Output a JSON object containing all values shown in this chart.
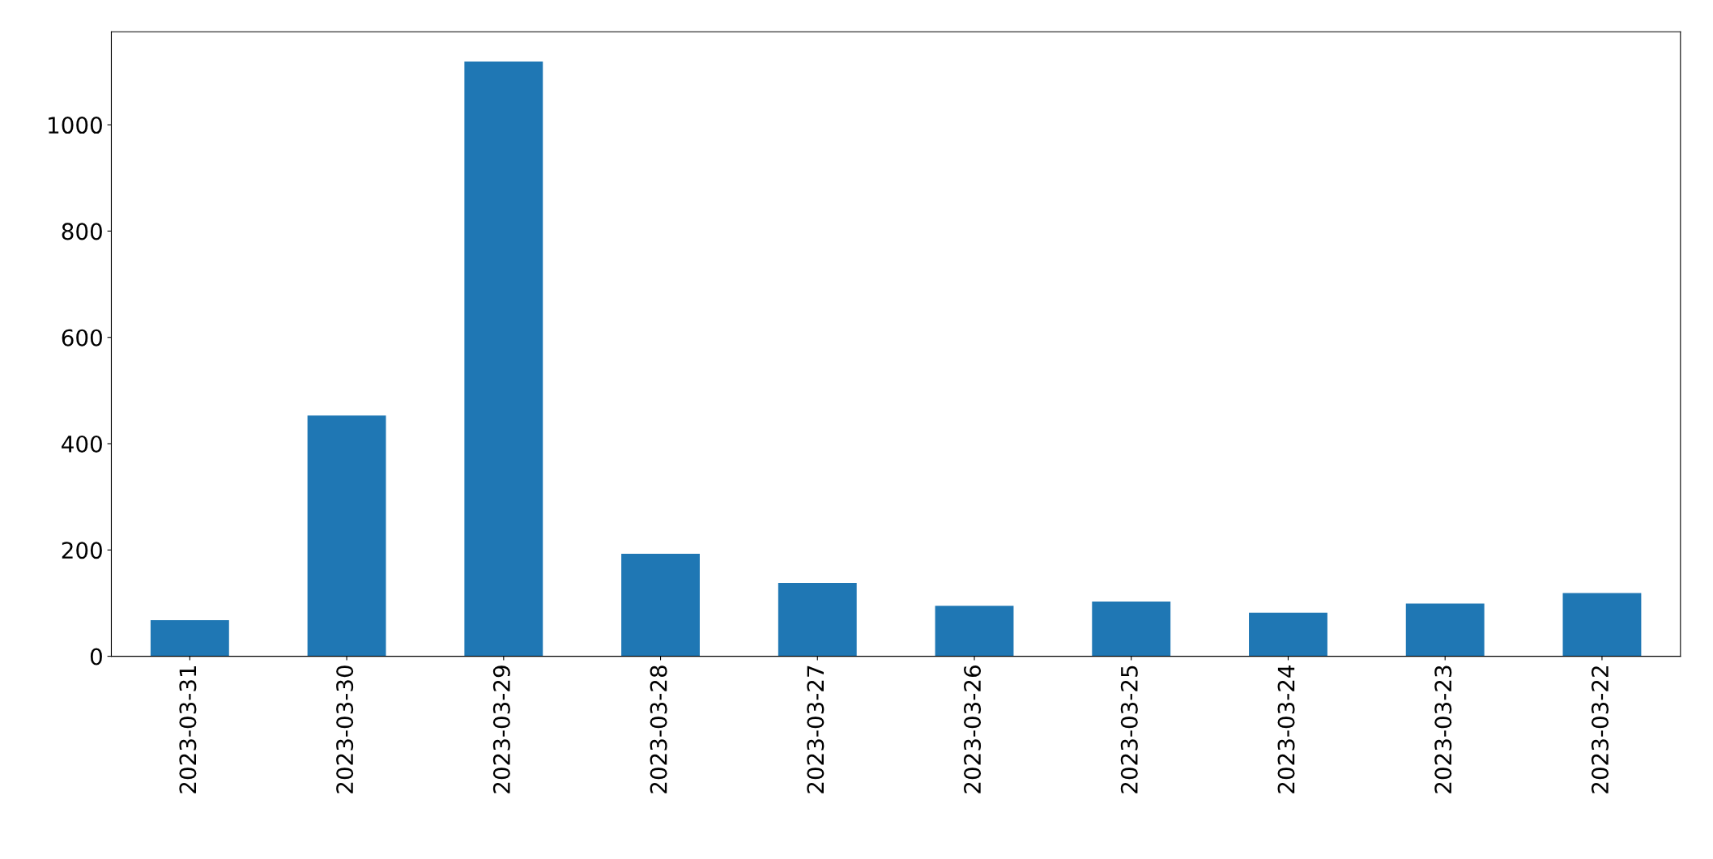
{
  "chart_data": {
    "type": "bar",
    "categories": [
      "2023-03-31",
      "2023-03-30",
      "2023-03-29",
      "2023-03-28",
      "2023-03-27",
      "2023-03-26",
      "2023-03-25",
      "2023-03-24",
      "2023-03-23",
      "2023-03-22"
    ],
    "values": [
      68,
      453,
      1119,
      193,
      138,
      95,
      103,
      82,
      99,
      119
    ],
    "color": "#1f77b4",
    "ylim": [
      0,
      1175
    ],
    "yticks": [
      0,
      200,
      400,
      600,
      800,
      1000
    ],
    "grid": false,
    "legend": false
  }
}
